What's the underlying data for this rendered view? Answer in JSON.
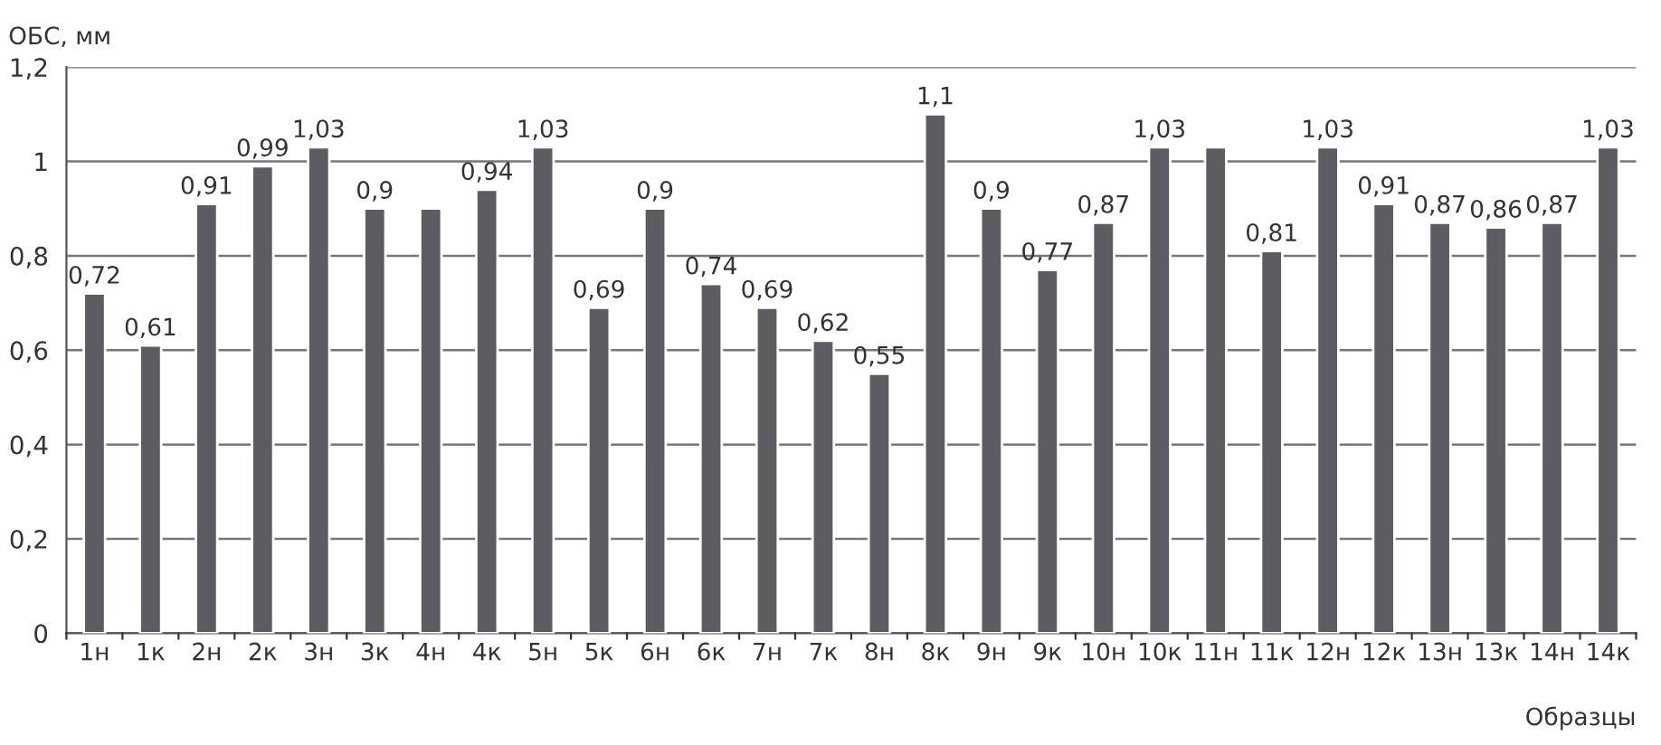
{
  "chart_data": {
    "type": "bar",
    "xlabel": "Образцы",
    "ylabel": "ОБС, мм",
    "categories": [
      "1н",
      "1к",
      "2н",
      "2к",
      "3н",
      "3к",
      "4н",
      "4к",
      "5н",
      "5к",
      "6н",
      "6к",
      "7н",
      "7к",
      "8н",
      "8к",
      "9н",
      "9к",
      "10н",
      "10к",
      "11н",
      "11к",
      "12н",
      "12к",
      "13н",
      "13к",
      "14н",
      "14к"
    ],
    "values": [
      0.72,
      0.61,
      0.91,
      0.99,
      1.03,
      0.9,
      0.9,
      0.94,
      1.03,
      0.69,
      0.9,
      0.74,
      0.69,
      0.62,
      0.55,
      1.1,
      0.9,
      0.77,
      0.87,
      1.03,
      1.03,
      0.81,
      1.03,
      0.91,
      0.87,
      0.86,
      0.87,
      1.03
    ],
    "value_labels": [
      "0,72",
      "0,61",
      "0,91",
      "0,99",
      "1,03",
      "0,9",
      null,
      "0,94",
      "1,03",
      "0,69",
      "0,9",
      "0,74",
      "0,69",
      "0,62",
      "0,55",
      "1,1",
      "0,9",
      "0,77",
      "0,87",
      "1,03",
      null,
      "0,81",
      "1,03",
      "0,91",
      "0,87",
      "0,86",
      "0,87",
      "1,03"
    ],
    "color": "#5d5c63",
    "ylim": [
      0,
      1.2
    ],
    "yticks": [
      0,
      {
        "value": 0.2,
        "label": "0,2"
      },
      {
        "value": 0.4,
        "label": "0,4"
      },
      {
        "value": 0.6,
        "label": "0,6"
      },
      {
        "value": 0.8,
        "label": "0,8"
      },
      1,
      {
        "value": 1.2,
        "label": "1,2"
      }
    ],
    "grid": "y"
  }
}
